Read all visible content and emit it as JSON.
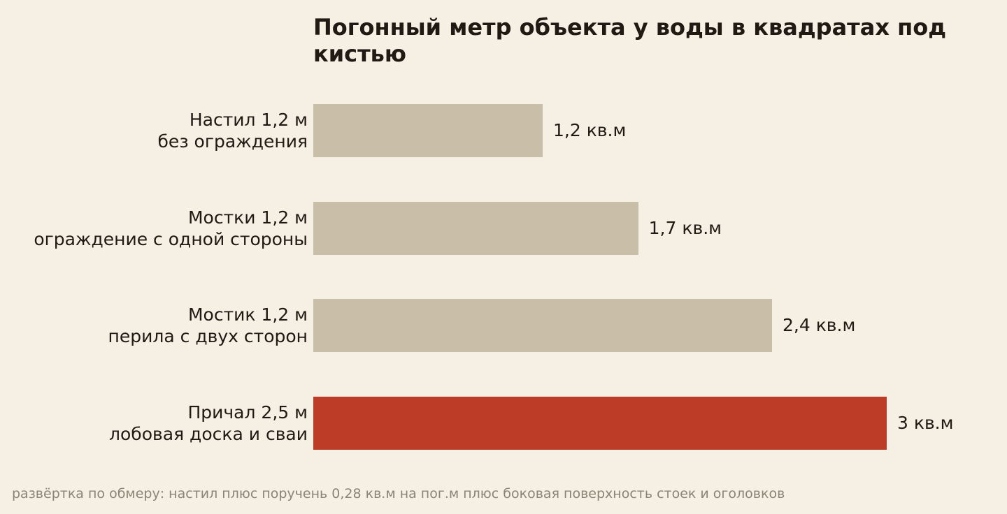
{
  "chart_data": {
    "type": "bar",
    "orientation": "horizontal",
    "title": "Погонный метр объекта у воды в квадратах под кистью",
    "xlabel": "",
    "ylabel": "",
    "grid": false,
    "categories": [
      {
        "line1": "Настил 1,2 м",
        "line2": "без ограждения"
      },
      {
        "line1": "Мостки 1,2 м",
        "line2": "ограждение с одной стороны"
      },
      {
        "line1": "Мостик 1,2 м",
        "line2": "перила с двух сторон"
      },
      {
        "line1": "Причал 2,5 м",
        "line2": "лобовая доска и сваи"
      }
    ],
    "values": [
      1.2,
      1.7,
      2.4,
      3.0
    ],
    "value_labels": [
      "1,2 кв.м",
      "1,7 кв.м",
      "2,4 кв.м",
      "3 кв.м"
    ],
    "highlight_index": 3,
    "xlim": [
      0,
      3
    ],
    "colors": {
      "bar": "#c9bfa8",
      "highlight": "#bc3c27",
      "background": "#f6f0e4"
    }
  },
  "footnote": "развёртка по обмеру: настил плюс поручень 0,28 кв.м на пог.м плюс боковая поверхность стоек и оголовков"
}
